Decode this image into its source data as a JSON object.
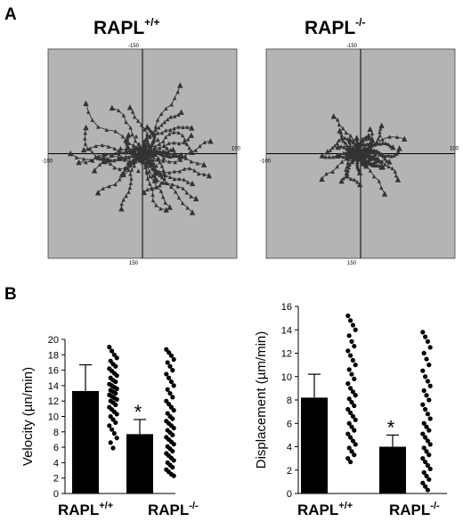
{
  "panels": {
    "a": "A",
    "b": "B"
  },
  "chart_data": [
    {
      "type": "scatter",
      "panel": "A",
      "title": "RAPL",
      "title_sup": "+/+",
      "xlim": [
        -100,
        100
      ],
      "ylim": [
        -150,
        150
      ],
      "tick_labels": {
        "left": "-100",
        "right": "100",
        "top": "-150",
        "bottom": "150"
      },
      "plot_background": "#b4b4b4",
      "track_color": "#333333",
      "spread": 1.0,
      "seed": 7
    },
    {
      "type": "scatter",
      "panel": "A",
      "title": "RAPL",
      "title_sup": "-/-",
      "xlim": [
        -100,
        100
      ],
      "ylim": [
        -150,
        150
      ],
      "tick_labels": {
        "left": "-100",
        "right": "100",
        "top": "-150",
        "bottom": "150"
      },
      "plot_background": "#b4b4b4",
      "track_color": "#333333",
      "spread": 0.55,
      "seed": 13
    },
    {
      "type": "bar",
      "panel": "B",
      "ylabel": "Velocity (µn/min)",
      "ylim": [
        0,
        20
      ],
      "yticks": [
        "0",
        "2",
        "4",
        "6",
        "8",
        "10",
        "12",
        "14",
        "16",
        "18",
        "20"
      ],
      "categories": [
        "RAPL",
        "RAPL"
      ],
      "category_sups": [
        "+/+",
        "-/-"
      ],
      "values": [
        13.3,
        7.7
      ],
      "errors": [
        3.4,
        1.9
      ],
      "significance": [
        "",
        "*"
      ],
      "points": [
        [
          19,
          18.5,
          18,
          17.6,
          17.2,
          16.8,
          16.5,
          16.2,
          15.9,
          15.6,
          15.3,
          15.0,
          14.7,
          14.5,
          14.2,
          14.0,
          13.8,
          13.6,
          13.4,
          13.2,
          13.0,
          12.8,
          12.6,
          12.4,
          12.2,
          12.0,
          11.8,
          11.5,
          11.2,
          10.9,
          10.6,
          10.3,
          10.0,
          9.6,
          9.2,
          8.8,
          8.3,
          7.8,
          7.2,
          6.6,
          5.9
        ],
        [
          18.7,
          18.3,
          17.9,
          17.4,
          17.0,
          16.5,
          16.0,
          15.5,
          15.0,
          14.5,
          14.0,
          13.5,
          13.0,
          12.5,
          12.0,
          11.6,
          11.2,
          10.8,
          10.4,
          10.0,
          9.7,
          9.4,
          9.1,
          8.8,
          8.5,
          8.2,
          7.9,
          7.6,
          7.3,
          7.0,
          6.7,
          6.4,
          6.1,
          5.8,
          5.5,
          5.2,
          4.9,
          4.6,
          4.3,
          4.0,
          3.7,
          3.4,
          3.1,
          2.8,
          2.5,
          2.3
        ]
      ]
    },
    {
      "type": "bar",
      "panel": "B",
      "ylabel": "Displacement (µm/min)",
      "ylim": [
        0,
        16
      ],
      "yticks": [
        "0",
        "2",
        "4",
        "6",
        "8",
        "10",
        "12",
        "14",
        "16"
      ],
      "categories": [
        "RAPL",
        "RAPL"
      ],
      "category_sups": [
        "+/+",
        "-/-"
      ],
      "values": [
        8.2,
        4.0
      ],
      "errors": [
        2.0,
        1.0
      ],
      "significance": [
        "",
        "*"
      ],
      "points": [
        [
          15.2,
          14.8,
          14.4,
          14.0,
          13.5,
          13.0,
          12.6,
          12.2,
          11.8,
          11.4,
          11.0,
          10.6,
          10.2,
          9.8,
          9.4,
          9.0,
          8.7,
          8.4,
          8.1,
          7.8,
          7.5,
          7.2,
          6.9,
          6.6,
          6.3,
          6.0,
          5.7,
          5.4,
          5.1,
          4.8,
          4.5,
          4.2,
          3.9,
          3.6,
          3.3,
          3.0,
          2.7
        ],
        [
          13.8,
          13.4,
          13.0,
          12.5,
          12.0,
          11.5,
          11.0,
          10.5,
          10.0,
          9.6,
          9.2,
          8.8,
          8.4,
          8.0,
          7.6,
          7.2,
          6.8,
          6.4,
          6.0,
          5.7,
          5.4,
          5.1,
          4.8,
          4.5,
          4.2,
          3.9,
          3.6,
          3.3,
          3.0,
          2.7,
          2.4,
          2.1,
          1.8,
          1.5,
          1.2,
          0.9,
          0.6,
          0.3
        ]
      ]
    }
  ]
}
